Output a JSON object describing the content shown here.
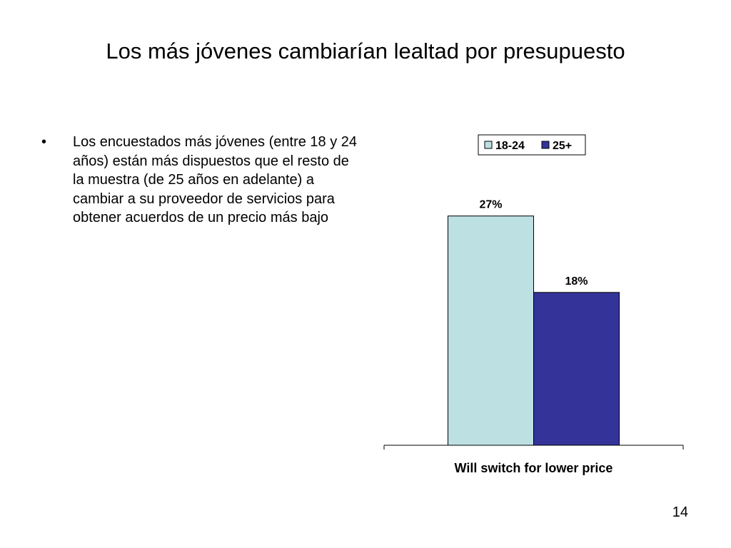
{
  "slide": {
    "title": "Los más jóvenes cambiarían lealtad por presupuesto",
    "bullet_marker": "•",
    "bullets": [
      "Los encuestados más jóvenes (entre 18 y 24 años) están más dispuestos que el resto de la muestra (de 25 años en adelante) a cambiar a su proveedor de servicios para obtener acuerdos de un precio más bajo"
    ],
    "page_number": "14"
  },
  "chart_data": {
    "type": "bar",
    "title": "",
    "xlabel": "",
    "ylabel": "",
    "categories": [
      "Will switch for lower price"
    ],
    "series": [
      {
        "name": "18-24",
        "values": [
          27
        ],
        "labels": [
          "27%"
        ],
        "color": "#bde0e3"
      },
      {
        "name": "25+",
        "values": [
          18
        ],
        "labels": [
          "18%"
        ],
        "color": "#333399"
      }
    ],
    "ylim": [
      0,
      30
    ],
    "grid": false,
    "legend": "top",
    "show_y_axis": false,
    "data_labels": true,
    "label_font_weight": "bold"
  }
}
